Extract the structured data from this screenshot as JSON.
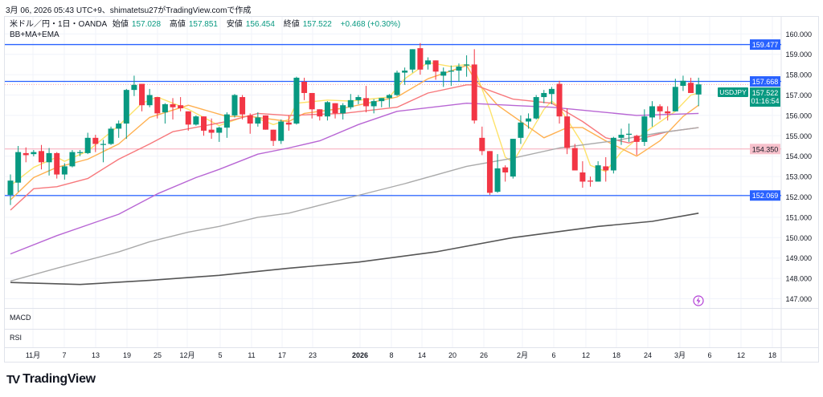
{
  "caption": "3月 06, 2026 05:43 UTC+9、shimatetsu27がTradingView.comで作成",
  "legend": {
    "symbol": "米ドル／円・1日・OANDA",
    "open_label": "始値",
    "open": "157.028",
    "high_label": "高値",
    "high": "157.851",
    "low_label": "安値",
    "low": "156.454",
    "close_label": "終値",
    "close": "157.522",
    "change": "+0.468 (+0.30%)",
    "indicators": "BB+MA+EMA"
  },
  "panes": {
    "macd": "MACD",
    "rsi": "RSI"
  },
  "price_tag": {
    "symbol": "USDJPY",
    "price": "157.522",
    "countdown": "01:16:54"
  },
  "logo": "TradingView",
  "colors": {
    "up": "#089981",
    "down": "#f23645",
    "hline_blue": "#2962ff",
    "hline_pink": "#f7a8b8",
    "ema_yellow": "#fde26a",
    "ema_orange": "#ffb050",
    "ema_red": "#f7787c",
    "ma_purple": "#b866d4",
    "ma_grey": "#aaaaaa",
    "ma_dark": "#555555"
  },
  "chart_data": {
    "type": "candlestick",
    "ylim": [
      146.6,
      160.5
    ],
    "y_ticks": [
      "147.000",
      "148.000",
      "149.000",
      "150.000",
      "151.000",
      "152.000",
      "153.000",
      "154.000",
      "155.000",
      "156.000",
      "157.000",
      "158.000",
      "159.000",
      "160.000"
    ],
    "x_ticks": [
      "11月",
      "7",
      "13",
      "19",
      "25",
      "12月",
      "5",
      "11",
      "17",
      "23",
      "2026",
      "8",
      "14",
      "20",
      "26",
      "2月",
      "6",
      "12",
      "18",
      "24",
      "3月",
      "6",
      "12",
      "18"
    ],
    "grid": true,
    "horizontal_lines": [
      {
        "price": 159.477,
        "label": "159.477",
        "color": "#2962ff"
      },
      {
        "price": 157.668,
        "label": "157.668",
        "color": "#2962ff"
      },
      {
        "price": 152.069,
        "label": "152.069",
        "color": "#2962ff"
      },
      {
        "price": 154.35,
        "label": "154.350",
        "color": "#f7a8b8"
      }
    ],
    "ohlc": [
      [
        152.1,
        153.1,
        151.6,
        152.8
      ],
      [
        152.7,
        154.5,
        152.25,
        154.2
      ],
      [
        154.15,
        154.43,
        153.7,
        154.05
      ],
      [
        154.1,
        154.3,
        153.99,
        154.2
      ],
      [
        154.25,
        154.55,
        153.35,
        153.7
      ],
      [
        153.7,
        154.4,
        153.05,
        154.15
      ],
      [
        154.15,
        154.2,
        152.9,
        153.1
      ],
      [
        153.1,
        153.65,
        152.85,
        153.5
      ],
      [
        153.5,
        154.3,
        153.45,
        154.2
      ],
      [
        154.15,
        154.3,
        154.0,
        154.2
      ],
      [
        154.15,
        155.15,
        154.1,
        154.9
      ],
      [
        154.9,
        155.05,
        154.2,
        154.6
      ],
      [
        154.55,
        154.8,
        153.7,
        154.6
      ],
      [
        154.6,
        155.45,
        154.55,
        155.35
      ],
      [
        155.35,
        155.75,
        154.9,
        155.6
      ],
      [
        155.6,
        157.3,
        154.85,
        157.25
      ],
      [
        157.25,
        157.95,
        156.95,
        157.5
      ],
      [
        157.55,
        157.55,
        156.2,
        156.5
      ],
      [
        156.5,
        157.3,
        156.4,
        157.0
      ],
      [
        156.9,
        156.9,
        155.85,
        156.1
      ],
      [
        156.15,
        156.6,
        155.6,
        156.55
      ],
      [
        156.55,
        156.85,
        155.8,
        156.4
      ],
      [
        156.5,
        156.9,
        156.2,
        156.35
      ],
      [
        156.2,
        156.2,
        155.25,
        155.55
      ],
      [
        155.55,
        156.0,
        155.5,
        155.95
      ],
      [
        155.95,
        155.95,
        155.0,
        155.25
      ],
      [
        155.3,
        155.85,
        154.85,
        155.15
      ],
      [
        155.15,
        155.45,
        154.7,
        155.4
      ],
      [
        155.4,
        156.15,
        154.9,
        156.05
      ],
      [
        156.0,
        157.05,
        155.9,
        157.0
      ],
      [
        156.9,
        157.0,
        155.8,
        156.05
      ],
      [
        156.0,
        156.1,
        155.1,
        155.6
      ],
      [
        155.6,
        156.15,
        155.45,
        155.9
      ],
      [
        156.0,
        156.0,
        155.3,
        155.3
      ],
      [
        155.3,
        155.3,
        154.5,
        154.75
      ],
      [
        154.75,
        155.8,
        154.6,
        155.7
      ],
      [
        155.65,
        156.0,
        155.25,
        155.55
      ],
      [
        155.6,
        157.9,
        155.55,
        157.85
      ],
      [
        157.65,
        157.85,
        156.75,
        157.1
      ],
      [
        157.1,
        157.1,
        155.85,
        156.3
      ],
      [
        156.3,
        156.3,
        155.75,
        155.95
      ],
      [
        155.95,
        156.7,
        155.75,
        156.65
      ],
      [
        156.6,
        156.6,
        155.85,
        156.1
      ],
      [
        156.1,
        156.6,
        155.8,
        156.5
      ],
      [
        156.4,
        157.05,
        156.3,
        156.75
      ],
      [
        156.75,
        157.0,
        156.55,
        156.9
      ],
      [
        156.85,
        157.45,
        156.15,
        156.45
      ],
      [
        156.45,
        156.8,
        156.1,
        156.7
      ],
      [
        156.7,
        156.85,
        156.4,
        156.85
      ],
      [
        156.85,
        157.05,
        156.4,
        157.0
      ],
      [
        157.0,
        158.2,
        156.95,
        158.1
      ],
      [
        158.1,
        158.35,
        157.5,
        158.2
      ],
      [
        158.25,
        159.25,
        158.1,
        159.25
      ],
      [
        159.3,
        159.55,
        158.0,
        158.25
      ],
      [
        158.5,
        158.85,
        158.25,
        158.7
      ],
      [
        158.7,
        158.7,
        157.75,
        158.15
      ],
      [
        157.95,
        158.35,
        157.4,
        158.15
      ],
      [
        158.15,
        158.45,
        157.45,
        158.2
      ],
      [
        158.2,
        158.55,
        157.65,
        158.4
      ],
      [
        158.45,
        158.95,
        157.9,
        158.5
      ],
      [
        158.5,
        159.25,
        155.6,
        155.75
      ],
      [
        154.9,
        155.45,
        154.05,
        154.25
      ],
      [
        154.25,
        154.25,
        152.1,
        152.2
      ],
      [
        152.25,
        154.1,
        152.2,
        153.4
      ],
      [
        153.45,
        153.55,
        152.75,
        153.2
      ],
      [
        153.0,
        154.85,
        152.9,
        154.85
      ],
      [
        154.9,
        156.0,
        154.6,
        155.65
      ],
      [
        155.7,
        156.1,
        155.35,
        155.85
      ],
      [
        155.85,
        157.0,
        155.8,
        156.9
      ],
      [
        156.9,
        157.25,
        156.6,
        157.1
      ],
      [
        157.05,
        157.4,
        156.55,
        157.3
      ],
      [
        157.55,
        157.7,
        155.6,
        155.95
      ],
      [
        155.95,
        156.35,
        154.1,
        154.4
      ],
      [
        154.4,
        154.6,
        153.3,
        153.3
      ],
      [
        153.2,
        153.75,
        152.45,
        152.75
      ],
      [
        152.8,
        153.0,
        152.5,
        152.75
      ],
      [
        152.75,
        153.75,
        152.75,
        153.55
      ],
      [
        153.5,
        153.95,
        152.75,
        153.3
      ],
      [
        153.3,
        154.95,
        153.15,
        154.9
      ],
      [
        154.9,
        155.35,
        154.55,
        155.05
      ],
      [
        155.05,
        155.6,
        154.7,
        155.1
      ],
      [
        155.0,
        155.05,
        154.05,
        154.7
      ],
      [
        154.7,
        156.3,
        154.5,
        155.95
      ],
      [
        155.9,
        156.7,
        155.45,
        156.45
      ],
      [
        156.45,
        156.55,
        155.8,
        156.2
      ],
      [
        156.2,
        156.45,
        155.75,
        156.1
      ],
      [
        156.2,
        157.8,
        156.2,
        157.4
      ],
      [
        157.45,
        157.95,
        157.2,
        157.7
      ],
      [
        157.6,
        157.85,
        157.1,
        157.1
      ],
      [
        157.028,
        157.851,
        156.454,
        157.522
      ]
    ],
    "overlays": [
      {
        "color": "#fde26a",
        "points": [
          [
            0,
            152.55
          ],
          [
            3,
            153.45
          ],
          [
            6,
            153.95
          ],
          [
            7,
            153.75
          ],
          [
            10,
            154.25
          ],
          [
            14,
            155.5
          ],
          [
            17,
            156.6
          ],
          [
            19,
            156.9
          ],
          [
            23,
            156.3
          ],
          [
            27,
            155.5
          ],
          [
            30,
            155.9
          ],
          [
            31,
            156.0
          ],
          [
            34,
            155.55
          ],
          [
            36,
            155.8
          ],
          [
            37,
            156.6
          ],
          [
            41,
            156.75
          ],
          [
            44,
            156.7
          ],
          [
            49,
            156.9
          ],
          [
            51,
            157.8
          ],
          [
            54,
            158.6
          ],
          [
            57,
            158.4
          ],
          [
            59,
            158.5
          ],
          [
            60,
            158.3
          ],
          [
            62,
            156.3
          ],
          [
            64,
            153.95
          ],
          [
            65,
            153.7
          ],
          [
            69,
            156.3
          ],
          [
            70,
            156.7
          ],
          [
            71,
            156.4
          ],
          [
            74,
            154.6
          ],
          [
            75,
            153.55
          ],
          [
            77,
            153.25
          ],
          [
            79,
            154.2
          ],
          [
            82,
            155.15
          ],
          [
            86,
            156.2
          ],
          [
            88,
            157.0
          ],
          [
            89,
            157.1
          ]
        ]
      },
      {
        "color": "#ffb050",
        "points": [
          [
            0,
            151.85
          ],
          [
            3,
            152.95
          ],
          [
            6,
            153.45
          ],
          [
            10,
            153.85
          ],
          [
            14,
            154.6
          ],
          [
            18,
            155.9
          ],
          [
            23,
            156.5
          ],
          [
            28,
            155.95
          ],
          [
            31,
            155.95
          ],
          [
            36,
            155.7
          ],
          [
            38,
            156.1
          ],
          [
            43,
            156.35
          ],
          [
            50,
            156.9
          ],
          [
            54,
            157.8
          ],
          [
            59,
            158.45
          ],
          [
            60,
            157.8
          ],
          [
            63,
            156.5
          ],
          [
            69,
            154.9
          ],
          [
            72,
            155.4
          ],
          [
            74,
            155.4
          ],
          [
            77,
            154.75
          ],
          [
            81,
            154.0
          ],
          [
            84,
            154.75
          ],
          [
            87,
            155.95
          ],
          [
            89,
            156.5
          ]
        ]
      },
      {
        "color": "#f7787c",
        "points": [
          [
            0,
            151.35
          ],
          [
            3,
            152.4
          ],
          [
            6,
            152.5
          ],
          [
            10,
            152.9
          ],
          [
            14,
            153.85
          ],
          [
            18,
            154.6
          ],
          [
            21,
            155.2
          ],
          [
            28,
            155.7
          ],
          [
            32,
            156.1
          ],
          [
            36,
            156.0
          ],
          [
            43,
            156.1
          ],
          [
            50,
            156.4
          ],
          [
            54,
            157.1
          ],
          [
            59,
            157.5
          ],
          [
            60,
            157.5
          ],
          [
            65,
            156.8
          ],
          [
            70,
            156.6
          ],
          [
            74,
            155.7
          ],
          [
            77,
            154.9
          ],
          [
            80,
            154.65
          ],
          [
            82,
            154.9
          ],
          [
            85,
            155.2
          ],
          [
            89,
            155.4
          ]
        ]
      },
      {
        "color": "#b866d4",
        "points": [
          [
            0,
            149.2
          ],
          [
            6,
            150.1
          ],
          [
            14,
            151.15
          ],
          [
            19,
            152.15
          ],
          [
            24,
            152.95
          ],
          [
            27,
            153.35
          ],
          [
            32,
            154.1
          ],
          [
            36,
            154.4
          ],
          [
            40,
            154.75
          ],
          [
            45,
            155.55
          ],
          [
            50,
            156.2
          ],
          [
            59,
            156.6
          ],
          [
            70,
            156.4
          ],
          [
            81,
            156.0
          ],
          [
            89,
            156.1
          ]
        ]
      },
      {
        "color": "#aaaaaa",
        "points": [
          [
            0,
            147.87
          ],
          [
            6,
            148.5
          ],
          [
            14,
            149.3
          ],
          [
            18,
            149.8
          ],
          [
            23,
            150.27
          ],
          [
            27,
            150.55
          ],
          [
            32,
            151.0
          ],
          [
            36,
            151.2
          ],
          [
            44,
            151.98
          ],
          [
            51,
            152.65
          ],
          [
            59,
            153.5
          ],
          [
            65,
            153.9
          ],
          [
            71,
            154.4
          ],
          [
            78,
            154.75
          ],
          [
            84,
            155.15
          ],
          [
            89,
            155.4
          ]
        ]
      },
      {
        "color": "#555555",
        "points": [
          [
            0,
            147.8
          ],
          [
            9,
            147.7
          ],
          [
            18,
            147.9
          ],
          [
            27,
            148.15
          ],
          [
            36,
            148.5
          ],
          [
            45,
            148.8
          ],
          [
            55,
            149.3
          ],
          [
            65,
            150.0
          ],
          [
            76,
            150.55
          ],
          [
            83,
            150.8
          ],
          [
            89,
            151.2
          ]
        ]
      }
    ]
  }
}
